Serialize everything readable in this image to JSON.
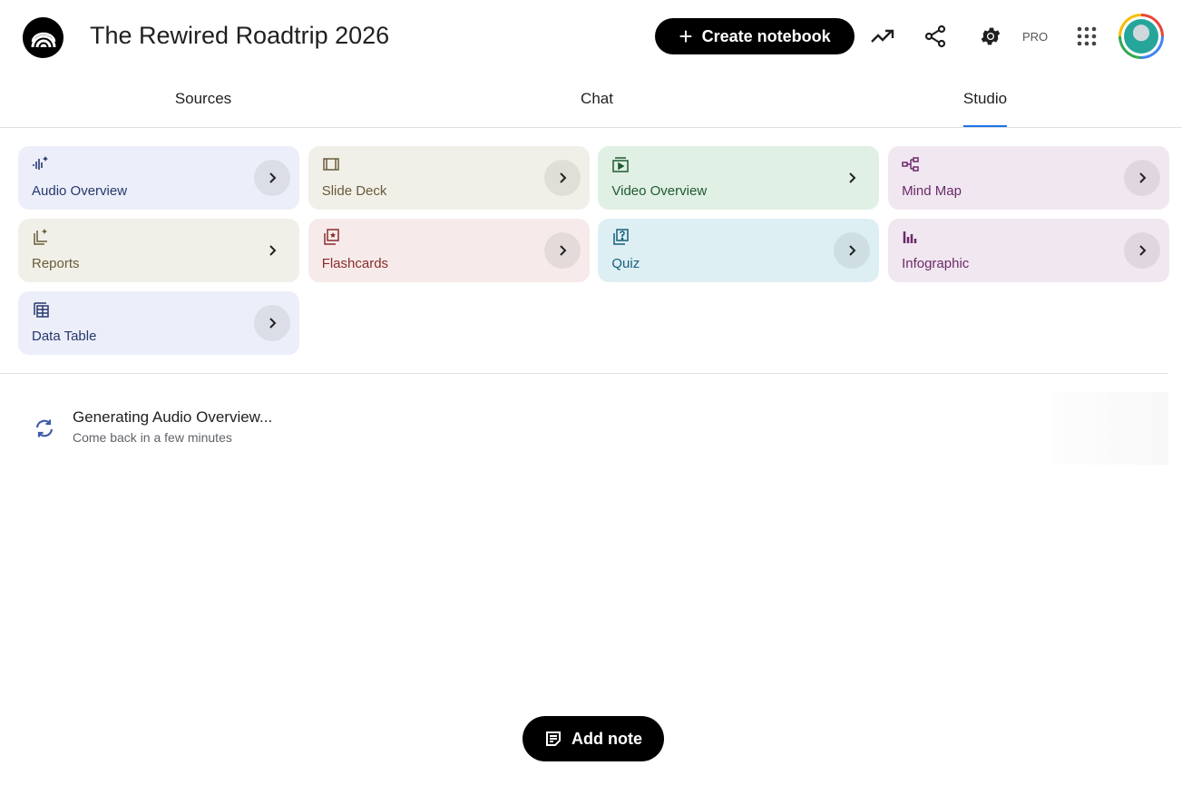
{
  "header": {
    "title": "The Rewired Roadtrip 2026",
    "create_label": "Create notebook",
    "pro_label": "PRO"
  },
  "tabs": [
    {
      "label": "Sources"
    },
    {
      "label": "Chat"
    },
    {
      "label": "Studio",
      "active": true
    }
  ],
  "studio_cards": [
    {
      "label": "Audio Overview",
      "icon": "audio-waveform-sparkle-icon",
      "bg": "#eceef9",
      "color": "#26396e"
    },
    {
      "label": "Slide Deck",
      "icon": "slides-icon",
      "bg": "#f1f0e8",
      "color": "#6a5a3a"
    },
    {
      "label": "Video Overview",
      "icon": "video-icon",
      "bg": "#e1f0e5",
      "color": "#1d5a30"
    },
    {
      "label": "Mind Map",
      "icon": "mind-map-icon",
      "bg": "#f1e7f0",
      "color": "#6b2a6b"
    },
    {
      "label": "Reports",
      "icon": "reports-icon",
      "bg": "#f1f0e8",
      "color": "#6a5a3a"
    },
    {
      "label": "Flashcards",
      "icon": "flashcards-icon",
      "bg": "#f6ebea",
      "color": "#8a2c2c"
    },
    {
      "label": "Quiz",
      "icon": "quiz-icon",
      "bg": "#deeff4",
      "color": "#175e7c"
    },
    {
      "label": "Infographic",
      "icon": "infographic-icon",
      "bg": "#f1e7f0",
      "color": "#6b2a6b"
    },
    {
      "label": "Data Table",
      "icon": "data-table-icon",
      "bg": "#eceef9",
      "color": "#26396e"
    }
  ],
  "generating": {
    "title": "Generating Audio Overview...",
    "subtitle": "Come back in a few minutes"
  },
  "add_note_label": "Add note"
}
